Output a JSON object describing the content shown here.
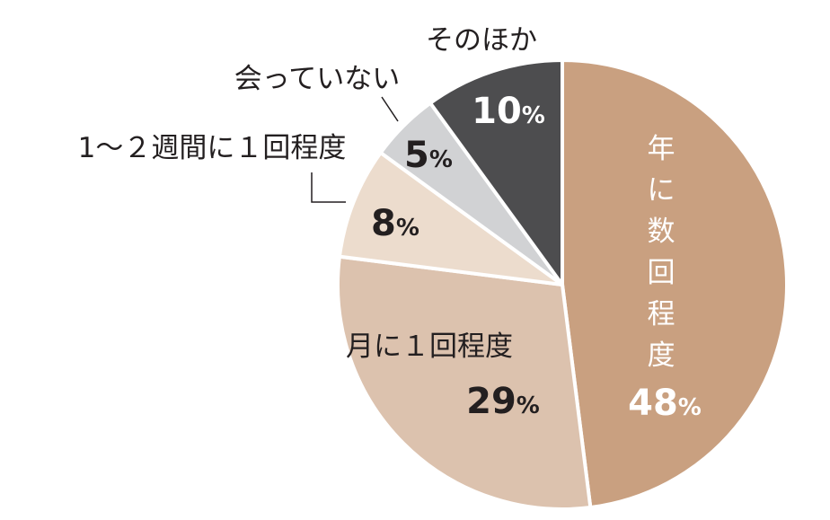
{
  "chart_data": {
    "type": "pie",
    "start_angle_deg": 0,
    "direction": "clockwise",
    "slices": [
      {
        "label": "年に数回程度",
        "value": 48,
        "display": "48",
        "unit": "%",
        "color": "#c9a080"
      },
      {
        "label": "月に１回程度",
        "value": 29,
        "display": "29",
        "unit": "%",
        "color": "#dcc2ae"
      },
      {
        "label": "1～２週間に１回程度",
        "value": 8,
        "display": "8",
        "unit": "%",
        "color": "#ecdccd"
      },
      {
        "label": "会っていない",
        "value": 5,
        "display": "5",
        "unit": "%",
        "color": "#d1d2d4"
      },
      {
        "label": "そのほか",
        "value": 10,
        "display": "10",
        "unit": "%",
        "color": "#4d4d4f"
      }
    ],
    "stroke_color": "#ffffff",
    "leader_color": "#231f20"
  }
}
